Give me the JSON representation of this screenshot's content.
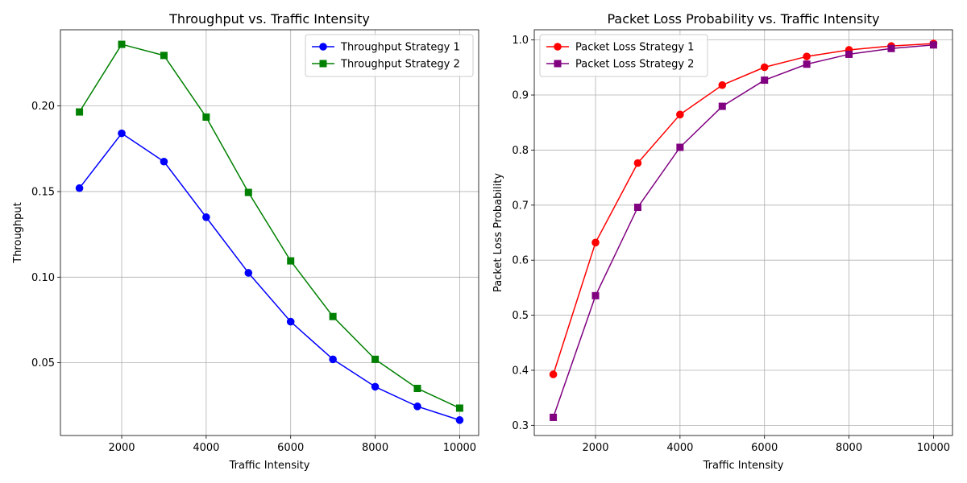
{
  "chart_data": [
    {
      "type": "line",
      "title": "Throughput vs. Traffic Intensity",
      "xlabel": "Traffic Intensity",
      "ylabel": "Throughput",
      "x": [
        1000,
        2000,
        3000,
        4000,
        5000,
        6000,
        7000,
        8000,
        9000,
        10000
      ],
      "xlim": [
        550,
        10450
      ],
      "ylim": [
        0.0075,
        0.2445
      ],
      "xticks": [
        2000,
        4000,
        6000,
        8000,
        10000
      ],
      "xtick_labels": [
        "2000",
        "4000",
        "6000",
        "8000",
        "10000"
      ],
      "yticks": [
        0.05,
        0.1,
        0.15,
        0.2
      ],
      "ytick_labels": [
        "0.05",
        "0.10",
        "0.15",
        "0.20"
      ],
      "grid": true,
      "legend_position": "upper right",
      "series": [
        {
          "name": "Throughput Strategy 1",
          "color": "#0000ff",
          "marker": "circle",
          "values": [
            0.152,
            0.184,
            0.1675,
            0.135,
            0.1025,
            0.074,
            0.052,
            0.036,
            0.0245,
            0.0165
          ]
        },
        {
          "name": "Throughput Strategy 2",
          "color": "#008000",
          "marker": "square",
          "values": [
            0.1965,
            0.236,
            0.2295,
            0.1935,
            0.1495,
            0.1095,
            0.077,
            0.052,
            0.035,
            0.0235
          ]
        }
      ]
    },
    {
      "type": "line",
      "title": "Packet Loss Probability vs. Traffic Intensity",
      "xlabel": "Traffic Intensity",
      "ylabel": "Packet Loss Probability",
      "x": [
        1000,
        2000,
        3000,
        4000,
        5000,
        6000,
        7000,
        8000,
        9000,
        10000
      ],
      "xlim": [
        550,
        10450
      ],
      "ylim": [
        0.2815,
        1.0185
      ],
      "xticks": [
        2000,
        4000,
        6000,
        8000,
        10000
      ],
      "xtick_labels": [
        "2000",
        "4000",
        "6000",
        "8000",
        "10000"
      ],
      "yticks": [
        0.3,
        0.4,
        0.5,
        0.6,
        0.7,
        0.8,
        0.9,
        1.0
      ],
      "ytick_labels": [
        "0.3",
        "0.4",
        "0.5",
        "0.6",
        "0.7",
        "0.8",
        "0.9",
        "1.0"
      ],
      "grid": true,
      "legend_position": "upper left",
      "series": [
        {
          "name": "Packet Loss Strategy 1",
          "color": "#ff0000",
          "marker": "circle",
          "values": [
            0.3925,
            0.632,
            0.7765,
            0.8645,
            0.918,
            0.9505,
            0.97,
            0.982,
            0.989,
            0.9935
          ]
        },
        {
          "name": "Packet Loss Strategy 2",
          "color": "#800080",
          "marker": "square",
          "values": [
            0.3145,
            0.5355,
            0.696,
            0.805,
            0.8795,
            0.927,
            0.956,
            0.974,
            0.9845,
            0.991
          ]
        }
      ]
    }
  ]
}
